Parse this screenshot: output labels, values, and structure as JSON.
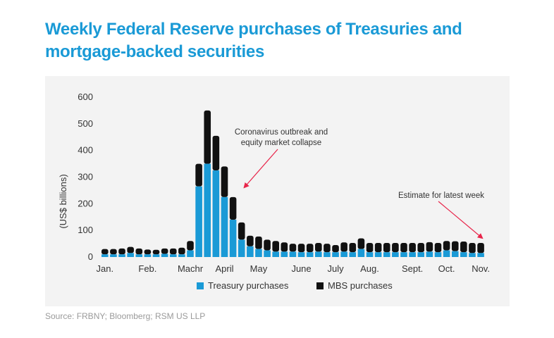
{
  "title": "Weekly Federal Reserve purchases of Treasuries and mortgage-backed securities",
  "source": "Source: FRBNY; Bloomberg; RSM US LLP",
  "colors": {
    "title": "#1a9ad6",
    "treasury": "#1a9ad6",
    "mbs": "#111111",
    "annotation": "#e8254a"
  },
  "chart_data": {
    "type": "bar",
    "stacked": true,
    "ylabel": "(US$ billions)",
    "xlabel": "",
    "ylim": [
      0,
      600
    ],
    "yticks": [
      0,
      100,
      200,
      300,
      400,
      500,
      600
    ],
    "grid": false,
    "legend": "bottom",
    "month_labels": [
      {
        "label": "Jan.",
        "week": 0
      },
      {
        "label": "Feb.",
        "week": 5
      },
      {
        "label": "Machr",
        "week": 10
      },
      {
        "label": "April",
        "week": 14
      },
      {
        "label": "May",
        "week": 18
      },
      {
        "label": "June",
        "week": 23
      },
      {
        "label": "July",
        "week": 27
      },
      {
        "label": "Aug.",
        "week": 31
      },
      {
        "label": "Sept.",
        "week": 36
      },
      {
        "label": "Oct.",
        "week": 40
      },
      {
        "label": "Nov.",
        "week": 44
      }
    ],
    "categories": [
      "W1",
      "W2",
      "W3",
      "W4",
      "W5",
      "W6",
      "W7",
      "W8",
      "W9",
      "W10",
      "W11",
      "W12",
      "W13",
      "W14",
      "W15",
      "W16",
      "W17",
      "W18",
      "W19",
      "W20",
      "W21",
      "W22",
      "W23",
      "W24",
      "W25",
      "W26",
      "W27",
      "W28",
      "W29",
      "W30",
      "W31",
      "W32",
      "W33",
      "W34",
      "W35",
      "W36",
      "W37",
      "W38",
      "W39",
      "W40",
      "W41",
      "W42",
      "W43",
      "W44",
      "W45"
    ],
    "series": [
      {
        "name": "Treasury purchases",
        "values": [
          10,
          10,
          10,
          15,
          10,
          10,
          10,
          12,
          10,
          10,
          25,
          265,
          350,
          325,
          225,
          140,
          65,
          40,
          30,
          25,
          20,
          20,
          20,
          18,
          18,
          20,
          18,
          18,
          20,
          18,
          30,
          18,
          18,
          18,
          18,
          18,
          18,
          18,
          20,
          18,
          25,
          22,
          18,
          15,
          15
        ]
      },
      {
        "name": "MBS purchases",
        "values": [
          20,
          20,
          22,
          23,
          22,
          18,
          17,
          20,
          22,
          25,
          35,
          85,
          200,
          130,
          115,
          85,
          65,
          40,
          47,
          40,
          40,
          35,
          30,
          32,
          32,
          33,
          32,
          27,
          35,
          35,
          40,
          35,
          35,
          35,
          35,
          35,
          35,
          35,
          36,
          35,
          35,
          37,
          40,
          38,
          38
        ]
      }
    ],
    "annotations": [
      {
        "text": [
          "Coronavirus outbreak and",
          "equity market collapse"
        ],
        "target_week": 16
      },
      {
        "text": [
          "Estimate for latest week"
        ],
        "target_week": 44
      }
    ]
  }
}
